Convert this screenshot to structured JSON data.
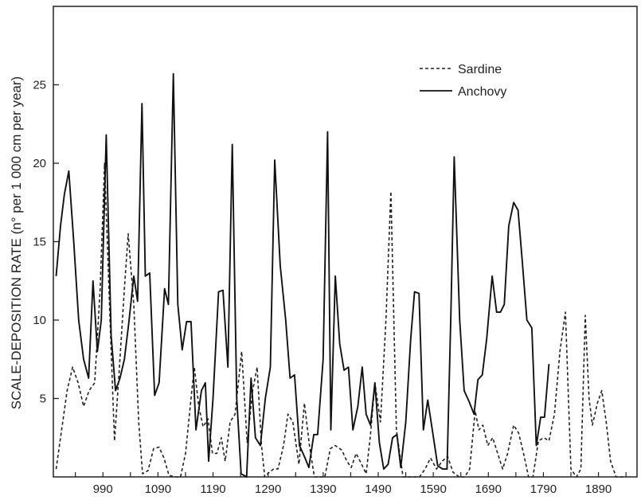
{
  "chart_data": {
    "type": "line",
    "title": "",
    "xlabel": "",
    "ylabel": "SCALE-DEPOSITION RATE (n° per 1 000 cm per year)",
    "xlim": [
      900,
      1960
    ],
    "ylim": [
      0,
      30
    ],
    "xticks": [
      990,
      1090,
      1190,
      1290,
      1390,
      1490,
      1590,
      1690,
      1790,
      1890
    ],
    "yticks": [
      5,
      10,
      15,
      20,
      25
    ],
    "grid": false,
    "legend_position": "top-right",
    "series": [
      {
        "name": "Sardine",
        "style": "dashed",
        "color": "#222222",
        "points": [
          [
            905,
            0.5
          ],
          [
            915,
            3.0
          ],
          [
            925,
            5.5
          ],
          [
            935,
            7.0
          ],
          [
            945,
            6.0
          ],
          [
            955,
            4.5
          ],
          [
            965,
            5.5
          ],
          [
            975,
            6.0
          ],
          [
            985,
            12.0
          ],
          [
            993,
            20.0
          ],
          [
            1003,
            10.0
          ],
          [
            1011,
            2.3
          ],
          [
            1020,
            7.0
          ],
          [
            1029,
            12.0
          ],
          [
            1036,
            15.5
          ],
          [
            1046,
            11.0
          ],
          [
            1055,
            3.5
          ],
          [
            1062,
            0.2
          ],
          [
            1072,
            0.4
          ],
          [
            1082,
            1.8
          ],
          [
            1092,
            1.9
          ],
          [
            1101,
            1.2
          ],
          [
            1110,
            0.1
          ],
          [
            1121,
            0.0
          ],
          [
            1131,
            0.0
          ],
          [
            1140,
            1.5
          ],
          [
            1150,
            5.0
          ],
          [
            1156,
            7.0
          ],
          [
            1164,
            4.5
          ],
          [
            1172,
            3.2
          ],
          [
            1181,
            3.7
          ],
          [
            1189,
            1.5
          ],
          [
            1197,
            1.5
          ],
          [
            1205,
            2.5
          ],
          [
            1212,
            1.0
          ],
          [
            1221,
            3.5
          ],
          [
            1230,
            4.0
          ],
          [
            1242,
            8.0
          ],
          [
            1252,
            2.2
          ],
          [
            1262,
            5.5
          ],
          [
            1270,
            7.0
          ],
          [
            1278,
            2.0
          ],
          [
            1284,
            0.0
          ],
          [
            1292,
            0.3
          ],
          [
            1300,
            0.5
          ],
          [
            1308,
            0.5
          ],
          [
            1318,
            2.0
          ],
          [
            1326,
            4.0
          ],
          [
            1335,
            3.5
          ],
          [
            1346,
            0.8
          ],
          [
            1356,
            4.7
          ],
          [
            1365,
            2.0
          ],
          [
            1374,
            0.0
          ],
          [
            1383,
            0.0
          ],
          [
            1393,
            0.0
          ],
          [
            1403,
            1.8
          ],
          [
            1412,
            2.0
          ],
          [
            1424,
            1.7
          ],
          [
            1433,
            1.0
          ],
          [
            1441,
            0.6
          ],
          [
            1450,
            1.5
          ],
          [
            1460,
            0.8
          ],
          [
            1468,
            0.2
          ],
          [
            1476,
            2.7
          ],
          [
            1484,
            6.0
          ],
          [
            1494,
            3.5
          ],
          [
            1504,
            10.0
          ],
          [
            1513,
            18.2
          ],
          [
            1523,
            3.0
          ],
          [
            1535,
            0.0
          ],
          [
            1545,
            0.0
          ],
          [
            1555,
            0.0
          ],
          [
            1565,
            0.0
          ],
          [
            1575,
            0.5
          ],
          [
            1585,
            1.2
          ],
          [
            1596,
            0.5
          ],
          [
            1606,
            1.0
          ],
          [
            1616,
            1.3
          ],
          [
            1626,
            0.3
          ],
          [
            1637,
            0.0
          ],
          [
            1647,
            0.0
          ],
          [
            1656,
            0.5
          ],
          [
            1666,
            4.2
          ],
          [
            1673,
            3.0
          ],
          [
            1680,
            3.3
          ],
          [
            1689,
            2.0
          ],
          [
            1698,
            2.5
          ],
          [
            1707,
            1.5
          ],
          [
            1716,
            0.5
          ],
          [
            1725,
            1.5
          ],
          [
            1736,
            3.3
          ],
          [
            1745,
            2.8
          ],
          [
            1754,
            1.5
          ],
          [
            1763,
            0.0
          ],
          [
            1771,
            0.0
          ],
          [
            1781,
            2.3
          ],
          [
            1791,
            2.5
          ],
          [
            1800,
            2.3
          ],
          [
            1810,
            4.0
          ],
          [
            1820,
            8.0
          ],
          [
            1830,
            10.5
          ],
          [
            1840,
            0.5
          ],
          [
            1850,
            0.0
          ],
          [
            1858,
            0.5
          ],
          [
            1866,
            10.3
          ],
          [
            1873,
            5.0
          ],
          [
            1879,
            3.3
          ],
          [
            1888,
            4.7
          ],
          [
            1896,
            5.5
          ],
          [
            1904,
            3.5
          ],
          [
            1912,
            1.0
          ],
          [
            1922,
            0.0
          ],
          [
            1935,
            0.0
          ]
        ]
      },
      {
        "name": "Anchovy",
        "style": "solid",
        "color": "#111111",
        "points": [
          [
            905,
            12.8
          ],
          [
            913,
            16.0
          ],
          [
            920,
            18.0
          ],
          [
            928,
            19.5
          ],
          [
            937,
            15.0
          ],
          [
            946,
            10.0
          ],
          [
            955,
            7.5
          ],
          [
            964,
            6.3
          ],
          [
            972,
            12.5
          ],
          [
            980,
            8.0
          ],
          [
            987,
            10.0
          ],
          [
            996,
            21.8
          ],
          [
            1005,
            9.0
          ],
          [
            1013,
            5.5
          ],
          [
            1021,
            6.3
          ],
          [
            1029,
            7.5
          ],
          [
            1037,
            9.8
          ],
          [
            1046,
            12.8
          ],
          [
            1053,
            11.2
          ],
          [
            1061,
            23.8
          ],
          [
            1067,
            12.8
          ],
          [
            1075,
            13.0
          ],
          [
            1084,
            5.2
          ],
          [
            1092,
            6.0
          ],
          [
            1102,
            12.0
          ],
          [
            1109,
            11.0
          ],
          [
            1118,
            25.7
          ],
          [
            1126,
            11.0
          ],
          [
            1134,
            8.1
          ],
          [
            1142,
            9.9
          ],
          [
            1150,
            9.9
          ],
          [
            1159,
            3.0
          ],
          [
            1169,
            5.5
          ],
          [
            1176,
            6.0
          ],
          [
            1182,
            1.0
          ],
          [
            1190,
            5.0
          ],
          [
            1200,
            11.8
          ],
          [
            1208,
            11.9
          ],
          [
            1217,
            7.0
          ],
          [
            1225,
            21.2
          ],
          [
            1233,
            5.0
          ],
          [
            1241,
            0.2
          ],
          [
            1251,
            0.0
          ],
          [
            1259,
            6.3
          ],
          [
            1267,
            2.5
          ],
          [
            1276,
            2.0
          ],
          [
            1285,
            5.0
          ],
          [
            1294,
            7.0
          ],
          [
            1302,
            20.2
          ],
          [
            1312,
            13.5
          ],
          [
            1322,
            10.0
          ],
          [
            1330,
            6.3
          ],
          [
            1338,
            6.5
          ],
          [
            1347,
            2.0
          ],
          [
            1356,
            1.3
          ],
          [
            1364,
            0.6
          ],
          [
            1373,
            2.7
          ],
          [
            1380,
            2.7
          ],
          [
            1390,
            7.5
          ],
          [
            1398,
            22.0
          ],
          [
            1404,
            3.0
          ],
          [
            1412,
            12.8
          ],
          [
            1420,
            8.5
          ],
          [
            1428,
            6.8
          ],
          [
            1436,
            7.0
          ],
          [
            1444,
            3.0
          ],
          [
            1453,
            4.5
          ],
          [
            1461,
            7.0
          ],
          [
            1468,
            4.0
          ],
          [
            1476,
            3.3
          ],
          [
            1484,
            6.0
          ],
          [
            1492,
            2.2
          ],
          [
            1500,
            0.5
          ],
          [
            1508,
            0.8
          ],
          [
            1516,
            2.5
          ],
          [
            1524,
            2.7
          ],
          [
            1531,
            0.6
          ],
          [
            1540,
            3.5
          ],
          [
            1549,
            8.8
          ],
          [
            1556,
            11.8
          ],
          [
            1564,
            11.7
          ],
          [
            1572,
            3.0
          ],
          [
            1580,
            4.9
          ],
          [
            1589,
            2.8
          ],
          [
            1598,
            0.7
          ],
          [
            1607,
            0.5
          ],
          [
            1615,
            0.5
          ],
          [
            1622,
            10.5
          ],
          [
            1628,
            20.4
          ],
          [
            1638,
            10.0
          ],
          [
            1646,
            5.5
          ],
          [
            1655,
            4.8
          ],
          [
            1664,
            4.0
          ],
          [
            1671,
            6.2
          ],
          [
            1679,
            6.5
          ],
          [
            1687,
            8.8
          ],
          [
            1697,
            12.8
          ],
          [
            1705,
            10.5
          ],
          [
            1712,
            10.5
          ],
          [
            1719,
            11.0
          ],
          [
            1727,
            16.0
          ],
          [
            1736,
            17.5
          ],
          [
            1744,
            17.0
          ],
          [
            1751,
            14.0
          ],
          [
            1760,
            10.0
          ],
          [
            1769,
            9.5
          ],
          [
            1777,
            2.0
          ],
          [
            1785,
            3.8
          ],
          [
            1792,
            3.8
          ],
          [
            1800,
            7.2
          ]
        ]
      }
    ]
  }
}
